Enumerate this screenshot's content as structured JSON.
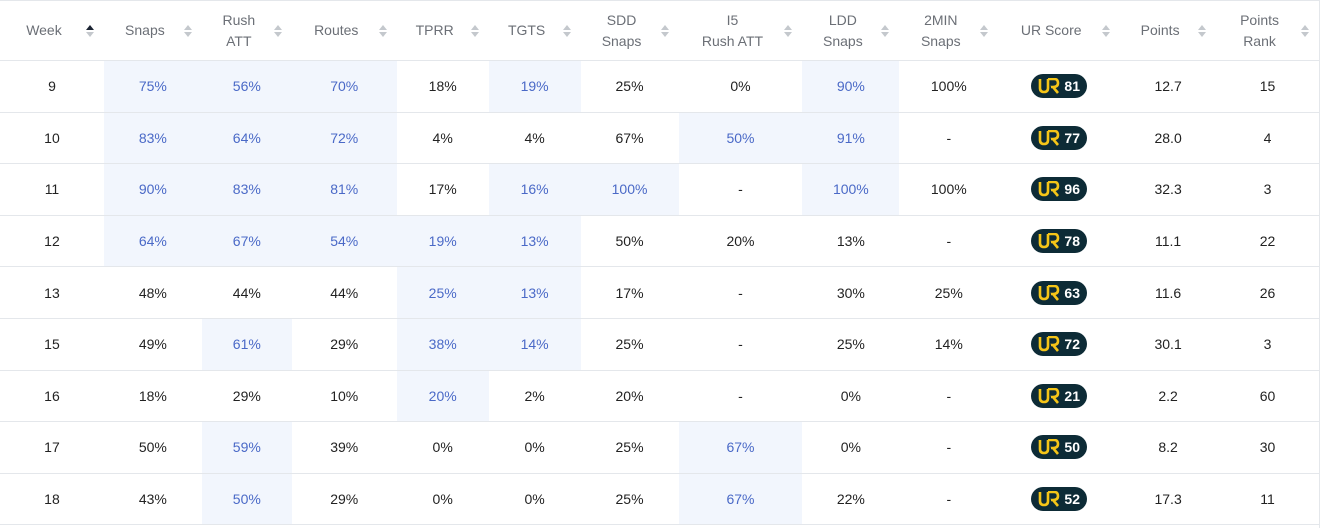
{
  "columns": [
    {
      "key": "week",
      "label": "Week",
      "sorted": true
    },
    {
      "key": "snaps",
      "label": "Snaps"
    },
    {
      "key": "rush_att",
      "label": "Rush\nATT"
    },
    {
      "key": "routes",
      "label": "Routes"
    },
    {
      "key": "tprr",
      "label": "TPRR"
    },
    {
      "key": "tgts",
      "label": "TGTS"
    },
    {
      "key": "sdd_snaps",
      "label": "SDD\nSnaps"
    },
    {
      "key": "i5_rush_att",
      "label": "I5\nRush ATT"
    },
    {
      "key": "ldd_snaps",
      "label": "LDD\nSnaps"
    },
    {
      "key": "two_min_snaps",
      "label": "2MIN\nSnaps"
    },
    {
      "key": "ur_score",
      "label": "UR Score"
    },
    {
      "key": "points",
      "label": "Points"
    },
    {
      "key": "points_rank",
      "label": "Points\nRank"
    }
  ],
  "highlight_colors": {
    "background": "#f2f6fd",
    "text": "#4a69c7",
    "badge_bg": "#0d2b36",
    "badge_logo": "#f5c518"
  },
  "rows": [
    {
      "week": "9",
      "snaps": "75%",
      "rush_att": "56%",
      "routes": "70%",
      "tprr": "18%",
      "tgts": "19%",
      "sdd_snaps": "25%",
      "i5_rush_att": "0%",
      "ldd_snaps": "90%",
      "two_min_snaps": "100%",
      "ur_score": "81",
      "points": "12.7",
      "points_rank": "15",
      "hl": [
        "snaps",
        "rush_att",
        "routes",
        "tgts",
        "ldd_snaps"
      ]
    },
    {
      "week": "10",
      "snaps": "83%",
      "rush_att": "64%",
      "routes": "72%",
      "tprr": "4%",
      "tgts": "4%",
      "sdd_snaps": "67%",
      "i5_rush_att": "50%",
      "ldd_snaps": "91%",
      "two_min_snaps": "-",
      "ur_score": "77",
      "points": "28.0",
      "points_rank": "4",
      "hl": [
        "snaps",
        "rush_att",
        "routes",
        "i5_rush_att",
        "ldd_snaps"
      ]
    },
    {
      "week": "11",
      "snaps": "90%",
      "rush_att": "83%",
      "routes": "81%",
      "tprr": "17%",
      "tgts": "16%",
      "sdd_snaps": "100%",
      "i5_rush_att": "-",
      "ldd_snaps": "100%",
      "two_min_snaps": "100%",
      "ur_score": "96",
      "points": "32.3",
      "points_rank": "3",
      "hl": [
        "snaps",
        "rush_att",
        "routes",
        "tgts",
        "sdd_snaps",
        "ldd_snaps"
      ]
    },
    {
      "week": "12",
      "snaps": "64%",
      "rush_att": "67%",
      "routes": "54%",
      "tprr": "19%",
      "tgts": "13%",
      "sdd_snaps": "50%",
      "i5_rush_att": "20%",
      "ldd_snaps": "13%",
      "two_min_snaps": "-",
      "ur_score": "78",
      "points": "11.1",
      "points_rank": "22",
      "hl": [
        "snaps",
        "rush_att",
        "routes",
        "tprr",
        "tgts"
      ]
    },
    {
      "week": "13",
      "snaps": "48%",
      "rush_att": "44%",
      "routes": "44%",
      "tprr": "25%",
      "tgts": "13%",
      "sdd_snaps": "17%",
      "i5_rush_att": "-",
      "ldd_snaps": "30%",
      "two_min_snaps": "25%",
      "ur_score": "63",
      "points": "11.6",
      "points_rank": "26",
      "hl": [
        "tprr",
        "tgts"
      ]
    },
    {
      "week": "15",
      "snaps": "49%",
      "rush_att": "61%",
      "routes": "29%",
      "tprr": "38%",
      "tgts": "14%",
      "sdd_snaps": "25%",
      "i5_rush_att": "-",
      "ldd_snaps": "25%",
      "two_min_snaps": "14%",
      "ur_score": "72",
      "points": "30.1",
      "points_rank": "3",
      "hl": [
        "rush_att",
        "tprr",
        "tgts"
      ]
    },
    {
      "week": "16",
      "snaps": "18%",
      "rush_att": "29%",
      "routes": "10%",
      "tprr": "20%",
      "tgts": "2%",
      "sdd_snaps": "20%",
      "i5_rush_att": "-",
      "ldd_snaps": "0%",
      "two_min_snaps": "-",
      "ur_score": "21",
      "points": "2.2",
      "points_rank": "60",
      "hl": [
        "tprr"
      ]
    },
    {
      "week": "17",
      "snaps": "50%",
      "rush_att": "59%",
      "routes": "39%",
      "tprr": "0%",
      "tgts": "0%",
      "sdd_snaps": "25%",
      "i5_rush_att": "67%",
      "ldd_snaps": "0%",
      "two_min_snaps": "-",
      "ur_score": "50",
      "points": "8.2",
      "points_rank": "30",
      "hl": [
        "rush_att",
        "i5_rush_att"
      ]
    },
    {
      "week": "18",
      "snaps": "43%",
      "rush_att": "50%",
      "routes": "29%",
      "tprr": "0%",
      "tgts": "0%",
      "sdd_snaps": "25%",
      "i5_rush_att": "67%",
      "ldd_snaps": "22%",
      "two_min_snaps": "-",
      "ur_score": "52",
      "points": "17.3",
      "points_rank": "11",
      "hl": [
        "rush_att",
        "i5_rush_att"
      ]
    }
  ]
}
